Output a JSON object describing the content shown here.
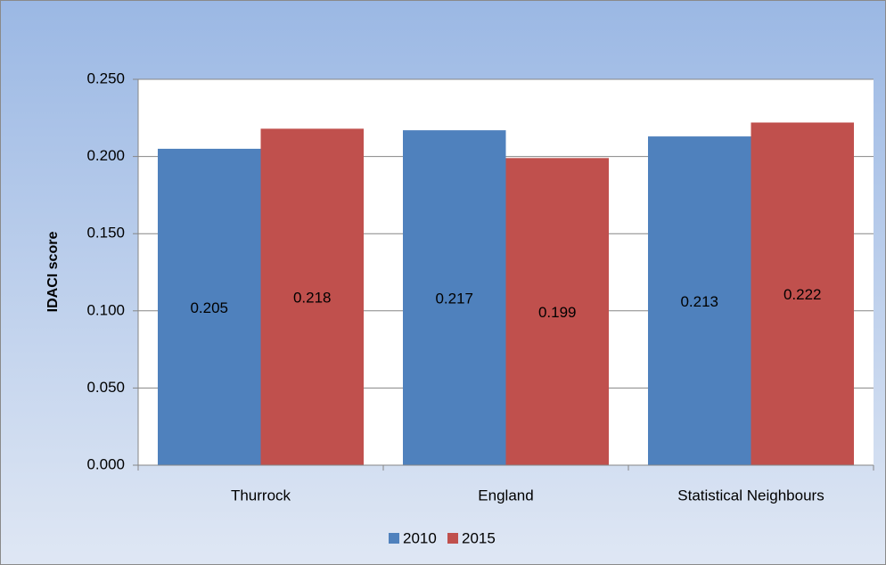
{
  "chart_data": {
    "type": "bar",
    "y_label": "IDACI score",
    "categories": [
      "Thurrock",
      "England",
      "Statistical Neighbours"
    ],
    "series": [
      {
        "name": "2010",
        "color": "#4f81bd",
        "values": [
          0.205,
          0.217,
          0.213
        ]
      },
      {
        "name": "2015",
        "color": "#c0504d",
        "values": [
          0.218,
          0.199,
          0.222
        ]
      }
    ],
    "ylim": [
      0,
      0.25
    ],
    "yticks": [
      {
        "value": 0,
        "label": "0.000"
      },
      {
        "value": 0.05,
        "label": "0.050"
      },
      {
        "value": 0.1,
        "label": "0.100"
      },
      {
        "value": 0.15,
        "label": "0.150"
      },
      {
        "value": 0.2,
        "label": "0.200"
      },
      {
        "value": 0.25,
        "label": "0.250"
      }
    ],
    "grid": true,
    "legend": "bottom"
  }
}
